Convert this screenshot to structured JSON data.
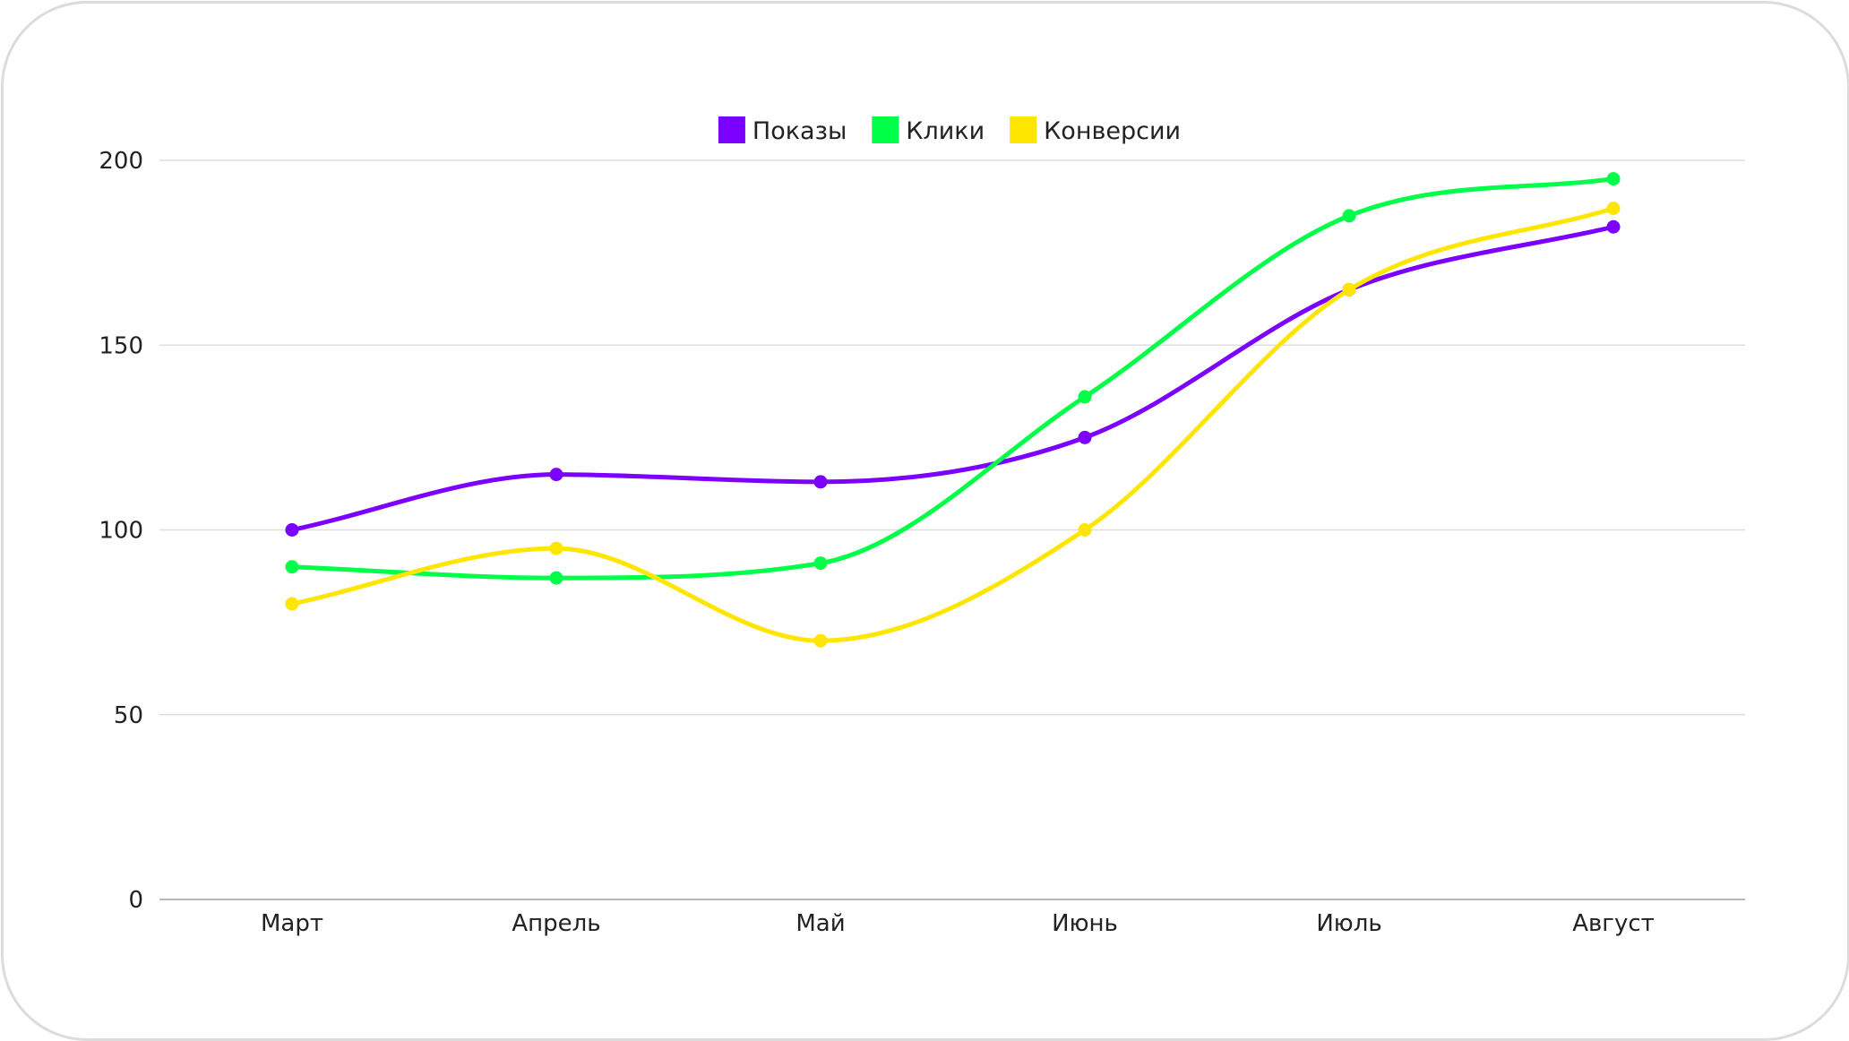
{
  "chart_data": {
    "type": "line",
    "title": "",
    "xlabel": "",
    "ylabel": "",
    "categories": [
      "Март",
      "Апрель",
      "Май",
      "Июнь",
      "Июль",
      "Август"
    ],
    "ylim": [
      0,
      200
    ],
    "yticks": [
      0,
      50,
      100,
      150,
      200
    ],
    "grid": true,
    "smooth": true,
    "legend_position": "top-center",
    "series": [
      {
        "name": "Показы",
        "color": "#7b00ff",
        "values": [
          100,
          115,
          113,
          125,
          165,
          182
        ]
      },
      {
        "name": "Клики",
        "color": "#00ff48",
        "values": [
          90,
          87,
          91,
          136,
          185,
          195
        ]
      },
      {
        "name": "Конверсии",
        "color": "#ffe600",
        "values": [
          80,
          95,
          70,
          100,
          165,
          187
        ]
      }
    ]
  },
  "colors": {
    "grid": "#dedede",
    "axis": "#b8b8b8",
    "card_border": "#dcdcdc"
  }
}
